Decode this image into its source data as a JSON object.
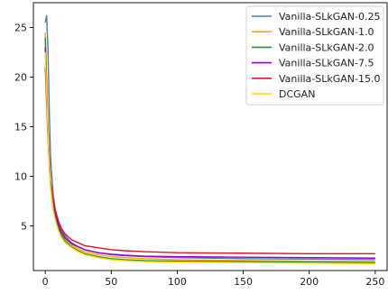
{
  "chart_data": {
    "type": "line",
    "title": "",
    "xlabel": "",
    "ylabel": "",
    "xlim": [
      -9,
      259
    ],
    "ylim": [
      0.5,
      27.5
    ],
    "x_ticks": [
      0,
      50,
      100,
      150,
      200,
      250
    ],
    "y_ticks": [
      5,
      10,
      15,
      20,
      25
    ],
    "grid": false,
    "legend_position": "top-right",
    "series": [
      {
        "name": "Vanilla-SLkGAN-0.25",
        "color": "#4a7fb0",
        "points": [
          [
            0,
            25.5
          ],
          [
            1,
            26.2
          ],
          [
            2,
            23.0
          ],
          [
            3,
            17.0
          ],
          [
            4,
            12.0
          ],
          [
            6,
            8.2
          ],
          [
            8,
            6.2
          ],
          [
            10,
            5.2
          ],
          [
            12,
            4.6
          ],
          [
            15,
            4.0
          ],
          [
            20,
            3.3
          ],
          [
            25,
            2.9
          ],
          [
            30,
            2.6
          ],
          [
            40,
            2.3
          ],
          [
            50,
            2.1
          ],
          [
            60,
            2.0
          ],
          [
            75,
            1.9
          ],
          [
            100,
            1.8
          ],
          [
            150,
            1.7
          ],
          [
            200,
            1.65
          ],
          [
            250,
            1.6
          ]
        ]
      },
      {
        "name": "Vanilla-SLkGAN-1.0",
        "color": "#ffa500",
        "points": [
          [
            0,
            24.5
          ],
          [
            1,
            20.0
          ],
          [
            2,
            15.5
          ],
          [
            3,
            12.0
          ],
          [
            4,
            9.5
          ],
          [
            6,
            7.4
          ],
          [
            8,
            6.0
          ],
          [
            10,
            5.0
          ],
          [
            12,
            4.3
          ],
          [
            15,
            3.7
          ],
          [
            20,
            3.1
          ],
          [
            25,
            2.7
          ],
          [
            30,
            2.4
          ],
          [
            40,
            2.1
          ],
          [
            50,
            1.9
          ],
          [
            60,
            1.8
          ],
          [
            75,
            1.7
          ],
          [
            100,
            1.6
          ],
          [
            150,
            1.5
          ],
          [
            200,
            1.45
          ],
          [
            250,
            1.4
          ]
        ]
      },
      {
        "name": "Vanilla-SLkGAN-2.0",
        "color": "#2e8b2e",
        "points": [
          [
            0,
            24.0
          ],
          [
            1,
            19.5
          ],
          [
            2,
            15.0
          ],
          [
            3,
            11.5
          ],
          [
            4,
            9.2
          ],
          [
            6,
            7.0
          ],
          [
            8,
            5.8
          ],
          [
            10,
            4.8
          ],
          [
            12,
            4.1
          ],
          [
            15,
            3.5
          ],
          [
            20,
            2.9
          ],
          [
            25,
            2.5
          ],
          [
            30,
            2.2
          ],
          [
            40,
            1.9
          ],
          [
            50,
            1.7
          ],
          [
            60,
            1.6
          ],
          [
            75,
            1.5
          ],
          [
            100,
            1.45
          ],
          [
            150,
            1.4
          ],
          [
            200,
            1.35
          ],
          [
            250,
            1.3
          ]
        ]
      },
      {
        "name": "Vanilla-SLkGAN-7.5",
        "color": "#9400d3",
        "points": [
          [
            0,
            23.0
          ],
          [
            1,
            19.0
          ],
          [
            2,
            15.0
          ],
          [
            3,
            11.8
          ],
          [
            4,
            9.4
          ],
          [
            6,
            7.4
          ],
          [
            8,
            6.0
          ],
          [
            10,
            5.1
          ],
          [
            12,
            4.4
          ],
          [
            15,
            3.8
          ],
          [
            20,
            3.2
          ],
          [
            25,
            2.9
          ],
          [
            30,
            2.6
          ],
          [
            40,
            2.3
          ],
          [
            50,
            2.15
          ],
          [
            60,
            2.05
          ],
          [
            75,
            1.95
          ],
          [
            100,
            1.9
          ],
          [
            150,
            1.85
          ],
          [
            200,
            1.8
          ],
          [
            250,
            1.75
          ]
        ]
      },
      {
        "name": "Vanilla-SLkGAN-15.0",
        "color": "#e0151b",
        "points": [
          [
            0,
            21.0
          ],
          [
            1,
            17.5
          ],
          [
            2,
            14.0
          ],
          [
            3,
            11.2
          ],
          [
            4,
            9.2
          ],
          [
            6,
            7.6
          ],
          [
            8,
            6.4
          ],
          [
            10,
            5.5
          ],
          [
            12,
            4.8
          ],
          [
            15,
            4.2
          ],
          [
            20,
            3.6
          ],
          [
            25,
            3.3
          ],
          [
            30,
            3.0
          ],
          [
            40,
            2.8
          ],
          [
            50,
            2.6
          ],
          [
            60,
            2.5
          ],
          [
            75,
            2.4
          ],
          [
            100,
            2.3
          ],
          [
            150,
            2.25
          ],
          [
            200,
            2.2
          ],
          [
            250,
            2.2
          ]
        ]
      },
      {
        "name": "DCGAN",
        "color": "#ffd700",
        "points": [
          [
            0,
            22.5
          ],
          [
            1,
            18.5
          ],
          [
            2,
            14.5
          ],
          [
            3,
            11.0
          ],
          [
            4,
            8.8
          ],
          [
            6,
            6.6
          ],
          [
            8,
            5.4
          ],
          [
            10,
            4.5
          ],
          [
            12,
            3.9
          ],
          [
            15,
            3.3
          ],
          [
            20,
            2.8
          ],
          [
            25,
            2.4
          ],
          [
            30,
            2.1
          ],
          [
            40,
            1.8
          ],
          [
            50,
            1.6
          ],
          [
            60,
            1.5
          ],
          [
            75,
            1.4
          ],
          [
            100,
            1.35
          ],
          [
            150,
            1.3
          ],
          [
            200,
            1.25
          ],
          [
            250,
            1.2
          ]
        ]
      }
    ]
  }
}
